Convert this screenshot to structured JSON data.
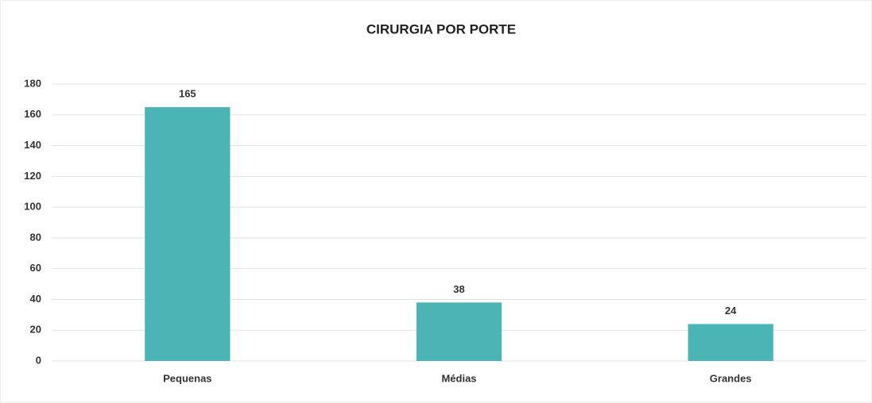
{
  "chart_data": {
    "type": "bar",
    "title": "CIRURGIA POR PORTE",
    "categories": [
      "Pequenas",
      "Médias",
      "Grandes"
    ],
    "values": [
      165,
      38,
      24
    ],
    "color": "#4bb5b5",
    "ylim": [
      0,
      180
    ],
    "yticks": [
      0,
      20,
      40,
      60,
      80,
      100,
      120,
      140,
      160,
      180
    ],
    "grid": true
  }
}
